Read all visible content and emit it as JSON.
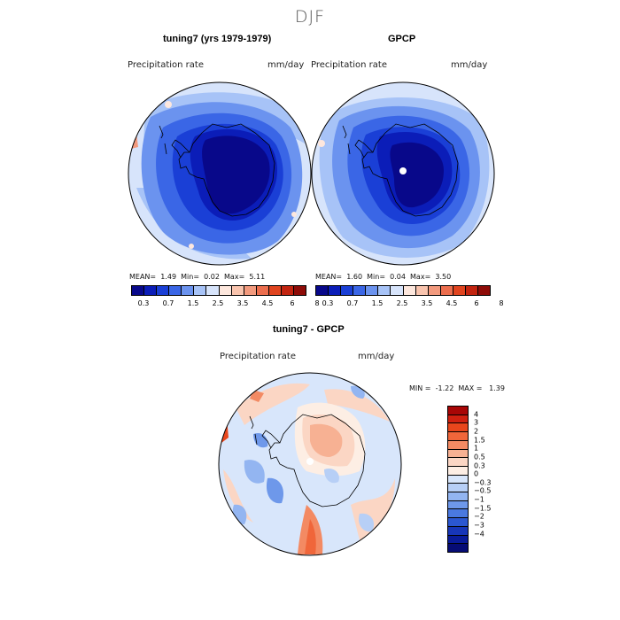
{
  "figure": {
    "season": "DJF"
  },
  "panels": [
    {
      "id": "model",
      "title": "tuning7 (yrs 1979-1979)",
      "variable": "Precipitation rate",
      "units": "mm/day",
      "stats": {
        "mean_label": "MEAN=",
        "mean": "1.49",
        "min_label": "Min=",
        "min": "0.02",
        "max_label": "Max=",
        "max": "5.11"
      }
    },
    {
      "id": "obs",
      "title": "GPCP",
      "variable": "Precipitation rate",
      "units": "mm/day",
      "stats": {
        "mean_label": "MEAN=",
        "mean": "1.60",
        "min_label": "Min=",
        "min": "0.04",
        "max_label": "Max=",
        "max": "3.50"
      }
    },
    {
      "id": "diff",
      "title": "tuning7 - GPCP",
      "variable": "Precipitation rate",
      "units": "mm/day",
      "stats": {
        "min_label": "MIN =",
        "min": "-1.22",
        "max_label": "MAX =",
        "max": "1.39"
      }
    }
  ],
  "colorbar_abs": {
    "colors": [
      "#08088a",
      "#0b1db8",
      "#1a3fd6",
      "#3a66e6",
      "#6b93ef",
      "#a7c3f7",
      "#d7e4fb",
      "#fde7dd",
      "#f9c4ae",
      "#f29a7e",
      "#ec6e4e",
      "#e0441f",
      "#c22410",
      "#8e0c08"
    ],
    "labels": [
      "0.3",
      "0.7",
      "1.5",
      "2.5",
      "3.5",
      "4.5",
      "6",
      "8"
    ]
  },
  "colorbar_diff": {
    "colors": [
      "#a80606",
      "#d02010",
      "#e8461c",
      "#f0663a",
      "#f38a63",
      "#f7b193",
      "#fbd6c4",
      "#fdeee4",
      "#d8e6fb",
      "#b7cff6",
      "#93b5f1",
      "#6e98ea",
      "#4a79e0",
      "#2b57d1",
      "#1736b8",
      "#091b99",
      "#060c75"
    ],
    "labels": [
      "4",
      "3",
      "2",
      "1.5",
      "1",
      "0.5",
      "0.3",
      "0",
      "−0.3",
      "−0.5",
      "−1",
      "−1.5",
      "−2",
      "−3",
      "−4"
    ]
  }
}
